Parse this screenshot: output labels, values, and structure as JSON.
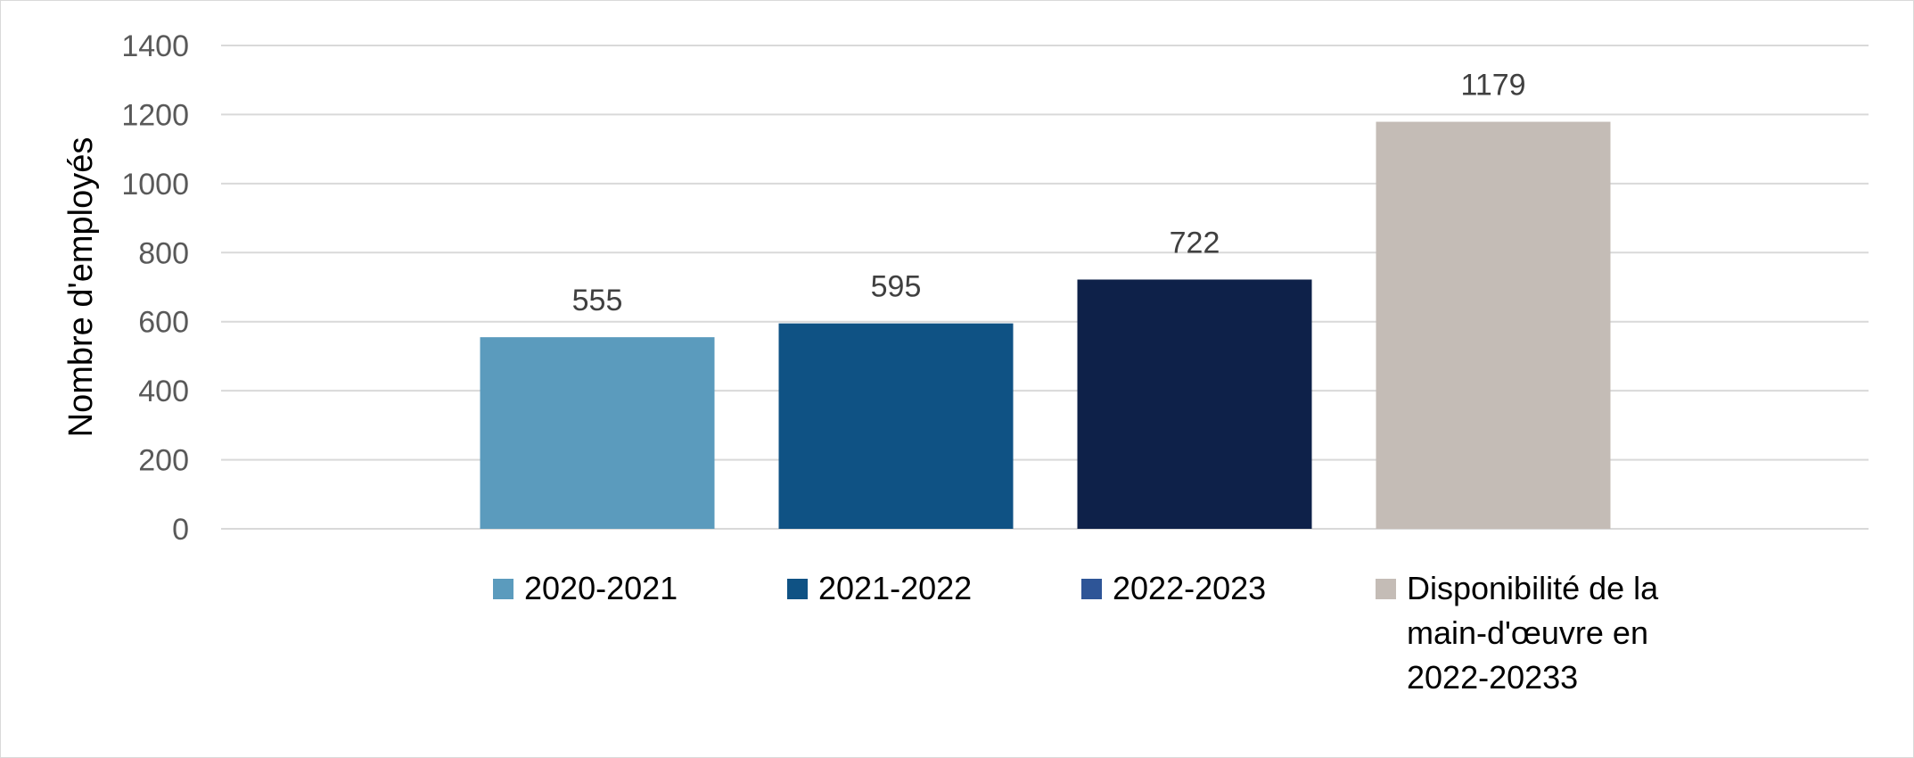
{
  "chart_data": {
    "type": "bar",
    "title": "",
    "xlabel": "",
    "ylabel": "Nombre d'employés",
    "ylim": [
      0,
      1400
    ],
    "yticks": [
      0,
      200,
      400,
      600,
      800,
      1000,
      1200,
      1400
    ],
    "grid": true,
    "legend_position": "bottom",
    "series": [
      {
        "name": "2020-2021",
        "value": 555,
        "color": "#5b9bbd"
      },
      {
        "name": "2021-2022",
        "value": 595,
        "color": "#0f5284"
      },
      {
        "name": "2022-2023",
        "value": 722,
        "color": "#0e2149"
      },
      {
        "name": "Disponibilité de la main-d'œuvre en 2022-20233",
        "value": 1179,
        "color": "#c4bcb6"
      }
    ],
    "legend_colors": [
      "#5b9bbd",
      "#0f5284",
      "#2e5597",
      "#c4bcb6"
    ]
  }
}
